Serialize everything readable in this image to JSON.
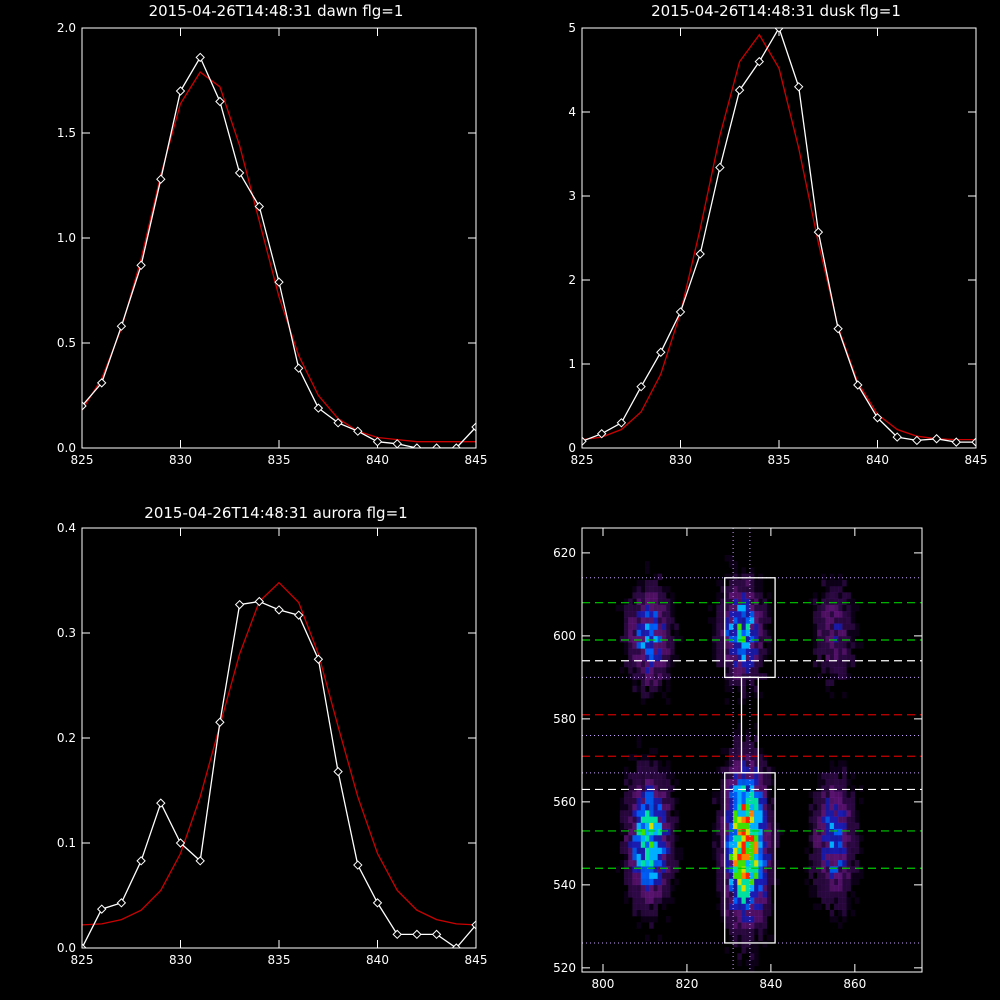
{
  "chart_data": [
    {
      "type": "line",
      "title": "2015-04-26T14:48:31 dawn flg=1",
      "xlim": [
        825,
        845
      ],
      "ylim": [
        0.0,
        2.0
      ],
      "x_ticks": [
        "825",
        "830",
        "835",
        "840",
        "845"
      ],
      "y_ticks": [
        "0.0",
        "0.5",
        "1.0",
        "1.5",
        "2.0"
      ],
      "series": [
        {
          "color": "#ffffff",
          "markers": "diamond",
          "x": [
            825,
            826,
            827,
            828,
            829,
            830,
            831,
            832,
            833,
            834,
            835,
            836,
            837,
            838,
            839,
            840,
            841,
            842,
            843,
            844,
            845
          ],
          "y": [
            0.2,
            0.31,
            0.58,
            0.87,
            1.28,
            1.7,
            1.86,
            1.65,
            1.31,
            1.15,
            0.79,
            0.38,
            0.19,
            0.12,
            0.08,
            0.03,
            0.02,
            0.0,
            0.0,
            0.0,
            0.1
          ]
        },
        {
          "color": "#cc0000",
          "x": [
            825,
            826,
            827,
            828,
            829,
            830,
            831,
            832,
            833,
            834,
            835,
            836,
            837,
            838,
            839,
            840,
            841,
            842,
            843,
            844,
            845
          ],
          "y": [
            0.18,
            0.33,
            0.57,
            0.9,
            1.3,
            1.64,
            1.79,
            1.72,
            1.44,
            1.08,
            0.72,
            0.44,
            0.25,
            0.14,
            0.08,
            0.05,
            0.04,
            0.03,
            0.03,
            0.03,
            0.03
          ]
        }
      ]
    },
    {
      "type": "line",
      "title": "2015-04-26T14:48:31 dusk flg=1",
      "xlim": [
        825,
        845
      ],
      "ylim": [
        0,
        5
      ],
      "x_ticks": [
        "825",
        "830",
        "835",
        "840",
        "845"
      ],
      "y_ticks": [
        "0",
        "1",
        "2",
        "3",
        "4",
        "5"
      ],
      "series": [
        {
          "color": "#ffffff",
          "markers": "diamond",
          "x": [
            825,
            826,
            827,
            828,
            829,
            830,
            831,
            832,
            833,
            834,
            835,
            836,
            837,
            838,
            839,
            840,
            841,
            842,
            843,
            844,
            845
          ],
          "y": [
            0.08,
            0.17,
            0.3,
            0.73,
            1.14,
            1.62,
            2.31,
            3.34,
            4.26,
            4.6,
            5.0,
            4.3,
            2.57,
            1.42,
            0.75,
            0.36,
            0.13,
            0.09,
            0.11,
            0.07,
            0.07
          ]
        },
        {
          "color": "#cc0000",
          "x": [
            825,
            826,
            827,
            828,
            829,
            830,
            831,
            832,
            833,
            834,
            835,
            836,
            837,
            838,
            839,
            840,
            841,
            842,
            843,
            844,
            845
          ],
          "y": [
            0.1,
            0.13,
            0.22,
            0.43,
            0.88,
            1.61,
            2.61,
            3.72,
            4.6,
            4.92,
            4.52,
            3.57,
            2.44,
            1.44,
            0.78,
            0.4,
            0.22,
            0.14,
            0.11,
            0.1,
            0.1
          ]
        }
      ]
    },
    {
      "type": "line",
      "title": "2015-04-26T14:48:31 aurora flg=1",
      "xlim": [
        825,
        845
      ],
      "ylim": [
        0.0,
        0.4
      ],
      "x_ticks": [
        "825",
        "830",
        "835",
        "840",
        "845"
      ],
      "y_ticks": [
        "0.0",
        "0.1",
        "0.2",
        "0.3",
        "0.4"
      ],
      "series": [
        {
          "color": "#ffffff",
          "markers": "diamond",
          "x": [
            825,
            826,
            827,
            828,
            829,
            830,
            831,
            832,
            833,
            834,
            835,
            836,
            837,
            838,
            839,
            840,
            841,
            842,
            843,
            844,
            845
          ],
          "y": [
            0.0,
            0.037,
            0.043,
            0.083,
            0.138,
            0.1,
            0.083,
            0.215,
            0.327,
            0.33,
            0.322,
            0.317,
            0.275,
            0.168,
            0.079,
            0.043,
            0.013,
            0.013,
            0.013,
            0.0,
            0.022
          ]
        },
        {
          "color": "#cc0000",
          "x": [
            825,
            826,
            827,
            828,
            829,
            830,
            831,
            832,
            833,
            834,
            835,
            836,
            837,
            838,
            839,
            840,
            841,
            842,
            843,
            844,
            845
          ],
          "y": [
            0.022,
            0.023,
            0.027,
            0.036,
            0.055,
            0.09,
            0.144,
            0.212,
            0.28,
            0.33,
            0.348,
            0.329,
            0.28,
            0.211,
            0.144,
            0.09,
            0.055,
            0.036,
            0.027,
            0.023,
            0.022
          ]
        }
      ]
    },
    {
      "type": "heatmap",
      "title": "",
      "xlim": [
        795,
        876
      ],
      "ylim": [
        519,
        626
      ],
      "x_ticks": [
        "800",
        "820",
        "840",
        "860"
      ],
      "y_ticks": [
        "520",
        "540",
        "560",
        "580",
        "600",
        "620"
      ],
      "colormap": [
        "#1a0030",
        "#4a0f70",
        "#7a1a9a",
        "#2020d0",
        "#0060ff",
        "#00b0ff",
        "#00e0a0",
        "#40e000",
        "#d0e000",
        "#ff8000",
        "#ff2000"
      ],
      "blobs": [
        {
          "x": 811,
          "y": 600,
          "sx": 3,
          "sy": 7,
          "amp": 0.45
        },
        {
          "x": 833,
          "y": 601,
          "sx": 3,
          "sy": 7,
          "amp": 0.52
        },
        {
          "x": 855,
          "y": 601,
          "sx": 3,
          "sy": 7,
          "amp": 0.22
        },
        {
          "x": 811,
          "y": 551,
          "sx": 3,
          "sy": 9,
          "amp": 0.62
        },
        {
          "x": 834,
          "y": 550,
          "sx": 3,
          "sy": 11,
          "amp": 1.0
        },
        {
          "x": 855,
          "y": 551,
          "sx": 3,
          "sy": 9,
          "amp": 0.38
        }
      ],
      "boxes": [
        {
          "x0": 829,
          "x1": 841,
          "y0": 590,
          "y1": 614,
          "color": "#ffffff"
        },
        {
          "x0": 829,
          "x1": 841,
          "y0": 526,
          "y1": 567,
          "color": "#ffffff"
        },
        {
          "x0": 833,
          "x1": 837,
          "y0": 567,
          "y1": 590,
          "color": "#ffffff"
        }
      ],
      "dotted_h": [
        {
          "y": 614,
          "color": "#c8a0ff"
        },
        {
          "y": 590,
          "color": "#c8a0ff"
        },
        {
          "y": 576,
          "color": "#c8a0ff"
        },
        {
          "y": 567,
          "color": "#c8a0ff"
        },
        {
          "y": 526,
          "color": "#c8a0ff"
        }
      ],
      "dotted_v": [
        {
          "x": 831,
          "color": "#c8a0ff"
        },
        {
          "x": 835,
          "color": "#c8a0ff"
        }
      ],
      "dashed_h": [
        {
          "y": 608,
          "color": "#00cc00"
        },
        {
          "y": 599,
          "color": "#00cc00"
        },
        {
          "y": 594,
          "color": "#ffffff"
        },
        {
          "y": 581,
          "color": "#cc0000"
        },
        {
          "y": 571,
          "color": "#cc0000"
        },
        {
          "y": 563,
          "color": "#ffffff"
        },
        {
          "y": 553,
          "color": "#00cc00"
        },
        {
          "y": 544,
          "color": "#00cc00"
        }
      ]
    }
  ]
}
